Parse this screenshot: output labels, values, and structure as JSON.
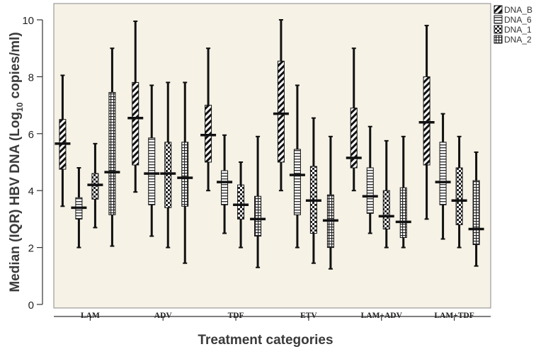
{
  "chart_data": {
    "type": "boxplot",
    "xlabel": "Treatment categories",
    "ylabel": {
      "pre": "Median (IQR) HBV DNA (Log",
      "sub": "10",
      "post": " copies/ml)"
    },
    "ylim": [
      0,
      10
    ],
    "yticks": [
      "0",
      "2",
      "4",
      "6",
      "8",
      "10"
    ],
    "categories": [
      "LAM",
      "ADV",
      "TDF",
      "ETV",
      "LAM+ADV",
      "LAM+TDF"
    ],
    "legend": {
      "position": "top-right"
    },
    "series": [
      {
        "name": "DNA_B",
        "pattern": "diagonal-stripes",
        "color": "#111111",
        "boxes": [
          {
            "min": 3.45,
            "q1": 4.75,
            "median": 5.65,
            "q3": 6.5,
            "max": 8.05
          },
          {
            "min": 3.95,
            "q1": 4.9,
            "median": 6.55,
            "q3": 7.8,
            "max": 9.95
          },
          {
            "min": 4.0,
            "q1": 5.0,
            "median": 5.95,
            "q3": 7.0,
            "max": 9.0
          },
          {
            "min": 4.0,
            "q1": 5.0,
            "median": 6.7,
            "q3": 8.55,
            "max": 10.0
          },
          {
            "min": 4.0,
            "q1": 4.8,
            "median": 5.15,
            "q3": 6.9,
            "max": 9.0
          },
          {
            "min": 3.0,
            "q1": 4.9,
            "median": 6.4,
            "q3": 8.0,
            "max": 9.8
          }
        ]
      },
      {
        "name": "DNA_6",
        "pattern": "horizontal-lines",
        "color": "#111111",
        "boxes": [
          {
            "min": 2.0,
            "q1": 3.0,
            "median": 3.4,
            "q3": 3.75,
            "max": 4.8
          },
          {
            "min": 2.4,
            "q1": 3.5,
            "median": 4.6,
            "q3": 5.85,
            "max": 7.7
          },
          {
            "min": 2.5,
            "q1": 3.5,
            "median": 4.3,
            "q3": 4.7,
            "max": 5.95
          },
          {
            "min": 2.0,
            "q1": 3.15,
            "median": 4.55,
            "q3": 5.45,
            "max": 7.7
          },
          {
            "min": 2.5,
            "q1": 3.2,
            "median": 3.8,
            "q3": 4.8,
            "max": 6.25
          },
          {
            "min": 2.3,
            "q1": 3.5,
            "median": 4.3,
            "q3": 5.7,
            "max": 6.7
          }
        ]
      },
      {
        "name": "DNA_1",
        "pattern": "checkered",
        "color": "#111111",
        "boxes": [
          {
            "min": 2.7,
            "q1": 3.7,
            "median": 4.2,
            "q3": 4.6,
            "max": 5.65
          },
          {
            "min": 2.0,
            "q1": 3.4,
            "median": 4.6,
            "q3": 5.7,
            "max": 7.8
          },
          {
            "min": 2.0,
            "q1": 3.0,
            "median": 3.5,
            "q3": 4.2,
            "max": 5.0
          },
          {
            "min": 1.45,
            "q1": 2.5,
            "median": 3.65,
            "q3": 4.85,
            "max": 6.55
          },
          {
            "min": 2.0,
            "q1": 2.65,
            "median": 3.1,
            "q3": 4.0,
            "max": 5.75
          },
          {
            "min": 2.0,
            "q1": 2.8,
            "median": 3.65,
            "q3": 4.8,
            "max": 5.9
          }
        ]
      },
      {
        "name": "DNA_2",
        "pattern": "grid",
        "color": "#111111",
        "boxes": [
          {
            "min": 2.05,
            "q1": 3.15,
            "median": 4.65,
            "q3": 7.45,
            "max": 9.0
          },
          {
            "min": 1.45,
            "q1": 3.45,
            "median": 4.45,
            "q3": 5.7,
            "max": 7.8
          },
          {
            "min": 1.3,
            "q1": 2.4,
            "median": 3.0,
            "q3": 3.8,
            "max": 5.9
          },
          {
            "min": 1.25,
            "q1": 2.0,
            "median": 2.95,
            "q3": 3.85,
            "max": 5.9
          },
          {
            "min": 2.0,
            "q1": 2.35,
            "median": 2.9,
            "q3": 4.1,
            "max": 5.9
          },
          {
            "min": 1.35,
            "q1": 2.1,
            "median": 2.65,
            "q3": 4.35,
            "max": 5.35
          }
        ]
      }
    ]
  }
}
